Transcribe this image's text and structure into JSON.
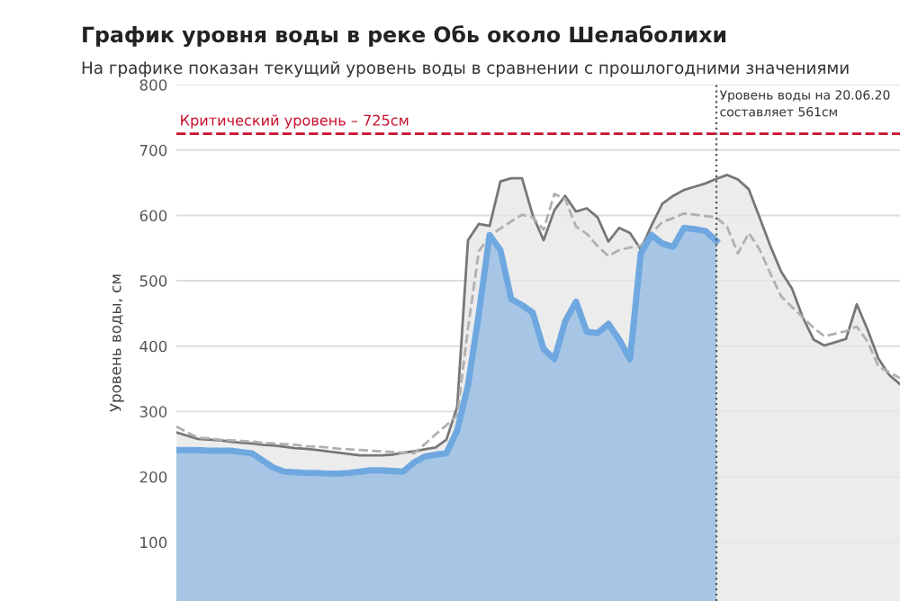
{
  "chart_data": {
    "type": "area",
    "title": "График уровня воды в реке Обь около Шелаболихи",
    "subtitle": "На графике показан текущий уровень воды в сравнении с прошлогодними значениями",
    "ylabel": "Уровень воды, см",
    "categories": [
      null,
      null,
      null,
      null,
      null,
      null,
      null,
      null,
      null,
      null,
      null,
      null,
      null,
      null,
      null,
      null,
      null,
      null,
      null,
      null,
      null,
      null,
      null,
      null,
      null,
      null,
      null,
      null,
      null,
      null,
      null,
      null,
      null,
      null,
      null,
      null,
      null,
      null,
      null,
      null,
      null,
      null,
      null,
      null,
      null,
      null,
      null,
      null,
      null,
      null,
      null,
      null,
      null,
      null,
      null,
      null,
      null,
      null,
      null,
      null,
      null,
      null,
      null,
      null,
      null,
      null,
      null,
      null
    ],
    "ylim": [
      10,
      800
    ],
    "yticks": [
      100,
      200,
      300,
      400,
      500,
      600,
      700,
      800
    ],
    "grid": "y",
    "series": [
      {
        "color": "#777777",
        "line_style": "solid",
        "values": [
          268,
          263,
          258,
          257,
          256,
          254,
          252,
          251,
          249,
          248,
          246,
          244,
          243,
          241,
          239,
          237,
          235,
          233,
          233,
          233,
          234,
          237,
          239,
          242,
          245,
          257,
          307,
          562,
          587,
          584,
          652,
          657,
          657,
          600,
          562,
          608,
          630,
          606,
          611,
          597,
          560,
          581,
          573,
          548,
          585,
          618,
          630,
          639,
          644,
          649,
          656,
          662,
          655,
          640,
          597,
          553,
          514,
          488,
          444,
          410,
          401,
          406,
          411,
          464,
          425,
          381,
          356,
          342
        ]
      },
      {
        "type": "line",
        "color": "#b0b0b0",
        "line_style": "dashed",
        "values": [
          277,
          268,
          260,
          259,
          257,
          256,
          255,
          254,
          252,
          251,
          250,
          249,
          247,
          246,
          245,
          243,
          242,
          241,
          240,
          239,
          238,
          237,
          236,
          250,
          265,
          279,
          294,
          427,
          545,
          569,
          580,
          591,
          601,
          597,
          578,
          633,
          625,
          583,
          572,
          553,
          538,
          547,
          551,
          554,
          573,
          590,
          596,
          603,
          601,
          599,
          597,
          582,
          542,
          573,
          548,
          511,
          476,
          460,
          444,
          428,
          415,
          419,
          423,
          430,
          407,
          369,
          360,
          351
        ]
      },
      {
        "color": "#6fa8e0",
        "line_style": "solid",
        "values": [
          241,
          241,
          241,
          240,
          240,
          240,
          238,
          236,
          225,
          214,
          208,
          207,
          206,
          206,
          205,
          205,
          206,
          208,
          210,
          210,
          209,
          208,
          222,
          231,
          234,
          236,
          271,
          340,
          449,
          570,
          547,
          472,
          463,
          451,
          396,
          380,
          438,
          468,
          422,
          420,
          434,
          410,
          380,
          542,
          570,
          557,
          552,
          581,
          579,
          576,
          561,
          null,
          null,
          null,
          null,
          null,
          null,
          null,
          null,
          null,
          null,
          null,
          null,
          null,
          null,
          null,
          null,
          null
        ]
      }
    ],
    "ref_lines": [
      {
        "axis": "y",
        "value": 725,
        "label": "Критический уровень – 725см",
        "color": "#c8102e",
        "line_style": "dashed"
      }
    ],
    "annotations": [
      "Уровень воды на 20.06.20\nсоставляет 561см"
    ]
  }
}
